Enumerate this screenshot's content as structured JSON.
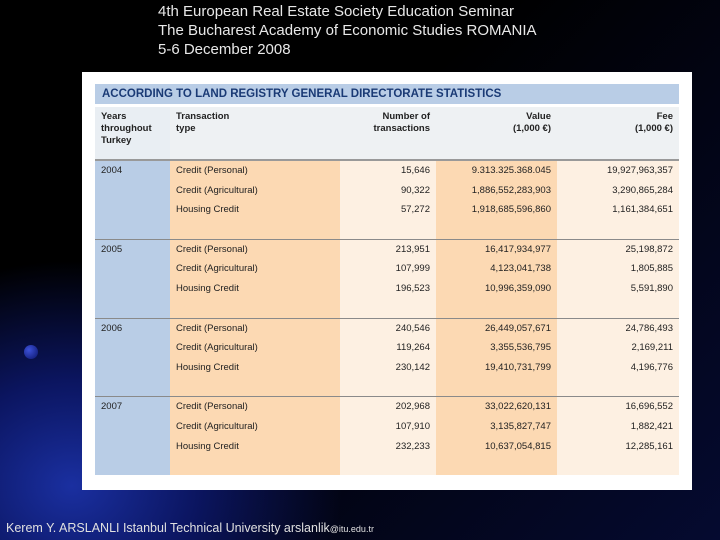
{
  "header": {
    "line1": "4th European Real Estate Society Education Seminar",
    "line2": "The Bucharest Academy of Economic Studies ROMANIA",
    "line3": "5-6 December 2008"
  },
  "table": {
    "title": "ACCORDING TO LAND REGISTRY GENERAL DIRECTORATE STATISTICS",
    "headers": {
      "year_l1": "Years",
      "year_l2": "throughout",
      "year_l3": "Turkey",
      "type_l1": "Transaction",
      "type_l2": "type",
      "count_l1": "Number of",
      "count_l2": "transactions",
      "value_l1": "Value",
      "value_l2": "(1,000 €)",
      "fee_l1": "Fee",
      "fee_l2": "(1,000 €)"
    },
    "groups": [
      {
        "year": "2004",
        "rows": [
          {
            "type": "Credit (Personal)",
            "count": "15,646",
            "value": "9.313.325.368.045",
            "fee": "19,927,963,357"
          },
          {
            "type": "Credit (Agricultural)",
            "count": "90,322",
            "value": "1,886,552,283,903",
            "fee": "3,290,865,284"
          },
          {
            "type": "Housing Credit",
            "count": "57,272",
            "value": "1,918,685,596,860",
            "fee": "1,161,384,651"
          }
        ]
      },
      {
        "year": "2005",
        "rows": [
          {
            "type": "Credit (Personal)",
            "count": "213,951",
            "value": "16,417,934,977",
            "fee": "25,198,872"
          },
          {
            "type": "Credit (Agricultural)",
            "count": "107,999",
            "value": "4,123,041,738",
            "fee": "1,805,885"
          },
          {
            "type": "Housing Credit",
            "count": "196,523",
            "value": "10,996,359,090",
            "fee": "5,591,890"
          }
        ]
      },
      {
        "year": "2006",
        "rows": [
          {
            "type": "Credit (Personal)",
            "count": "240,546",
            "value": "26,449,057,671",
            "fee": "24,786,493"
          },
          {
            "type": "Credit (Agricultural)",
            "count": "119,264",
            "value": "3,355,536,795",
            "fee": "2,169,211"
          },
          {
            "type": "Housing Credit",
            "count": "230,142",
            "value": "19,410,731,799",
            "fee": "4,196,776"
          }
        ]
      },
      {
        "year": "2007",
        "rows": [
          {
            "type": "Credit (Personal)",
            "count": "202,968",
            "value": "33,022,620,131",
            "fee": "16,696,552"
          },
          {
            "type": "Credit (Agricultural)",
            "count": "107,910",
            "value": "3,135,827,747",
            "fee": "1,882,421"
          },
          {
            "type": "Housing Credit",
            "count": "232,233",
            "value": "10,637,054,815",
            "fee": "12,285,161"
          }
        ]
      }
    ]
  },
  "footer": {
    "text": "Kerem Y. ARSLANLI Istanbul Technical University arslanlik",
    "email_domain": "@itu.edu.tr"
  }
}
